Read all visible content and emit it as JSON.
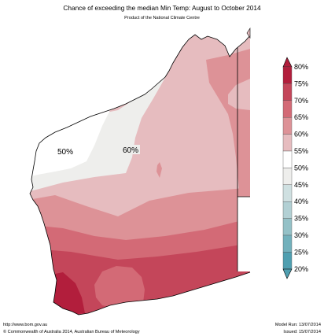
{
  "title": "Chance of exceeding the median Min Temp: August to October 2014",
  "subtitle": "Product of the National Climate Centre",
  "map_labels": [
    "50%",
    "60%"
  ],
  "legend": {
    "ticks": [
      "80%",
      "75%",
      "70%",
      "65%",
      "60%",
      "55%",
      "50%",
      "45%",
      "40%",
      "35%",
      "30%",
      "25%",
      "20%"
    ],
    "colors": {
      "80": "#b21e3c",
      "75": "#c4465a",
      "70": "#d36a76",
      "65": "#dd9297",
      "60": "#e6bcbf",
      "55": "#ffffff",
      "50": "#ffffff",
      "45": "#eeeeec",
      "40": "#cfe0e1",
      "35": "#b2d0d4",
      "30": "#94c1c7",
      "25": "#72b1bc",
      "20": "#4f9fb0"
    }
  },
  "footer": {
    "left_line1": "http://www.bom.gov.au",
    "left_line2": "©  Commonwealth of Australia 2014, Australian Bureau of Meteorology",
    "right_line1": "Model Run: 13/07/2014",
    "right_line2": "Issued: 15/07/2014"
  }
}
